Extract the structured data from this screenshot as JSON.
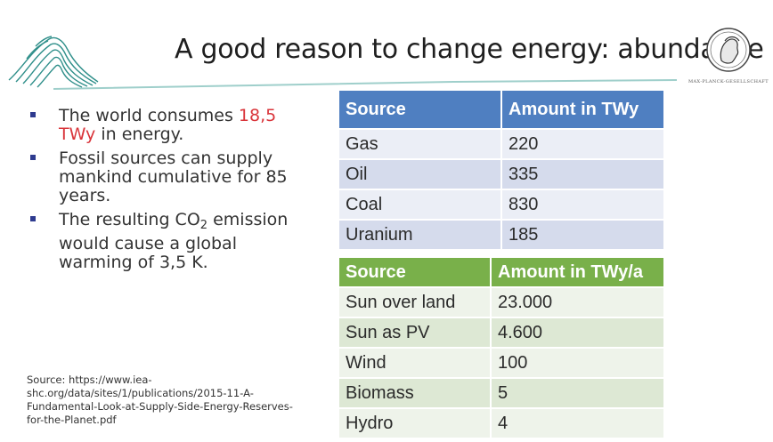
{
  "slide": {
    "title": "A good reason to change energy: abundance",
    "emblem_text": "MAX-PLANCK-GESELLSCHAFT"
  },
  "bullets": [
    {
      "pre": "The world consumes ",
      "highlight": "18,5 TWy",
      "post": " in energy."
    },
    {
      "text": "Fossil sources can supply mankind cumulative for 85 years."
    },
    {
      "pre": "The resulting CO",
      "sub": "2",
      "post": " emission would cause a global warming of 3,5 K."
    }
  ],
  "source_note": "Source: https://www.iea-shc.org/data/sites/1/publications/2015-11-A-Fundamental-Look-at-Supply-Side-Energy-Reserves-for-the-Planet.pdf",
  "table_fossil": {
    "headers": [
      "Source",
      "Amount in TWy"
    ],
    "rows": [
      [
        "Gas",
        "220"
      ],
      [
        "Oil",
        "335"
      ],
      [
        "Coal",
        "830"
      ],
      [
        "Uranium",
        "185"
      ]
    ]
  },
  "table_renewable": {
    "headers": [
      "Source",
      "Amount in TWy/a"
    ],
    "rows": [
      [
        "Sun over land",
        "23.000"
      ],
      [
        "Sun as PV",
        "4.600"
      ],
      [
        "Wind",
        "100"
      ],
      [
        "Biomass",
        "5"
      ],
      [
        "Hydro",
        "4"
      ]
    ]
  },
  "colors": {
    "fossil_header": "#4f7fc1",
    "renewable_header": "#79b04a",
    "highlight": "#d9343a",
    "logo": "#2f8f8a"
  },
  "icons": [
    "institute-logo-icon",
    "minerva-emblem-icon"
  ]
}
